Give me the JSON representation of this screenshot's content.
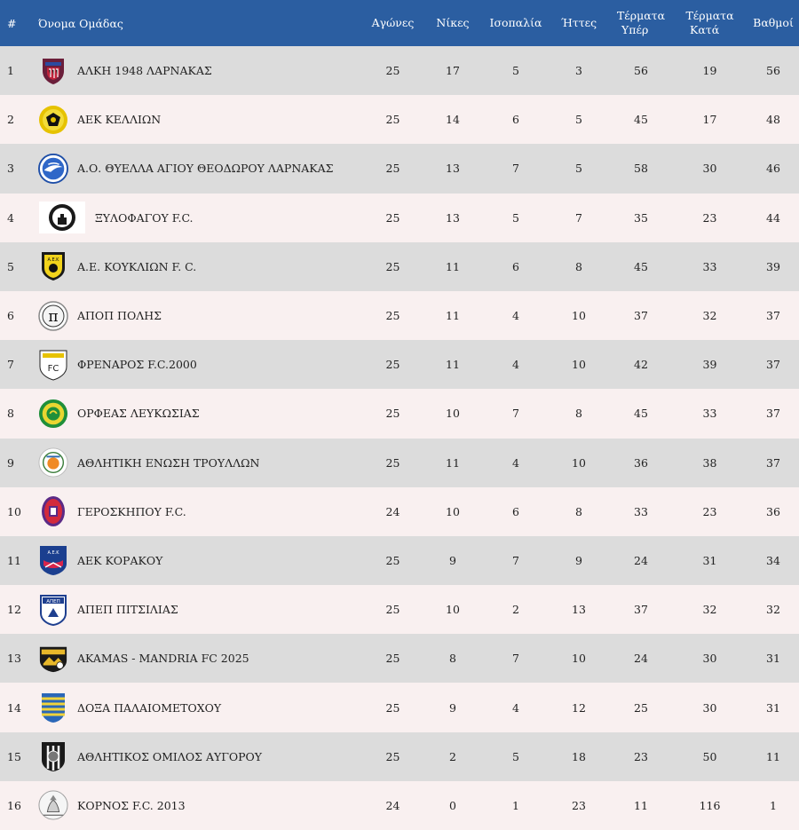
{
  "header": {
    "rank": "#",
    "team": "Όνομα Ομάδας",
    "played": "Αγώνες",
    "wins": "Νίκες",
    "draws": "Ισοπαλία",
    "losses": "Ήττες",
    "goals_for_line1": "Τέρματα",
    "goals_for_line2": "Υπέρ",
    "goals_against_line1": "Τέρματα",
    "goals_against_line2": "Κατά",
    "points": "Βαθμοί"
  },
  "colors": {
    "header_bg": "#2b5ea1",
    "row_odd": "#dcdcdc",
    "row_even": "#f9f0f0"
  },
  "rows": [
    {
      "rank": "1",
      "team": "ΑΛΚΗ 1948 ΛΑΡΝΑΚΑΣ",
      "logo": "alki-crest-icon",
      "played": "25",
      "wins": "17",
      "draws": "5",
      "losses": "3",
      "gf": "56",
      "ga": "19",
      "pts": "56"
    },
    {
      "rank": "2",
      "team": "ΑΕΚ ΚΕΛΛΙΩΝ",
      "logo": "aek-kellion-crest-icon",
      "played": "25",
      "wins": "14",
      "draws": "6",
      "losses": "5",
      "gf": "45",
      "ga": "17",
      "pts": "48"
    },
    {
      "rank": "3",
      "team": "Α.Ο. ΘΥΕΛΛΑ ΑΓΙΟΥ ΘΕΟΔΩΡΟΥ ΛΑΡΝΑΚΑΣ",
      "logo": "thyella-crest-icon",
      "played": "25",
      "wins": "13",
      "draws": "7",
      "losses": "5",
      "gf": "58",
      "ga": "30",
      "pts": "46"
    },
    {
      "rank": "4",
      "team": "ΞΥΛΟΦΑΓΟΥ F.C.",
      "logo": "xylofagou-crest-icon",
      "played": "25",
      "wins": "13",
      "draws": "5",
      "losses": "7",
      "gf": "35",
      "ga": "23",
      "pts": "44"
    },
    {
      "rank": "5",
      "team": "Α.Ε. ΚΟΥΚΛΙΩΝ F. C.",
      "logo": "ae-kouklion-crest-icon",
      "played": "25",
      "wins": "11",
      "draws": "6",
      "losses": "8",
      "gf": "45",
      "ga": "33",
      "pts": "39"
    },
    {
      "rank": "6",
      "team": "ΑΠΟΠ ΠΟΛΗΣ",
      "logo": "apop-crest-icon",
      "played": "25",
      "wins": "11",
      "draws": "4",
      "losses": "10",
      "gf": "37",
      "ga": "32",
      "pts": "37"
    },
    {
      "rank": "7",
      "team": "ΦΡΕΝΑΡΟΣ F.C.2000",
      "logo": "frenaros-crest-icon",
      "played": "25",
      "wins": "11",
      "draws": "4",
      "losses": "10",
      "gf": "42",
      "ga": "39",
      "pts": "37"
    },
    {
      "rank": "8",
      "team": "ΟΡΦΕΑΣ ΛΕΥΚΩΣΙΑΣ",
      "logo": "orfeas-crest-icon",
      "played": "25",
      "wins": "10",
      "draws": "7",
      "losses": "8",
      "gf": "45",
      "ga": "33",
      "pts": "37"
    },
    {
      "rank": "9",
      "team": "ΑΘΛΗΤΙΚΗ ΕΝΩΣΗ ΤΡΟΥΛΛΩΝ",
      "logo": "troullon-crest-icon",
      "played": "25",
      "wins": "11",
      "draws": "4",
      "losses": "10",
      "gf": "36",
      "ga": "38",
      "pts": "37"
    },
    {
      "rank": "10",
      "team": "ΓΕΡΟΣΚΗΠΟΥ F.C.",
      "logo": "geroskipou-crest-icon",
      "played": "24",
      "wins": "10",
      "draws": "6",
      "losses": "8",
      "gf": "33",
      "ga": "23",
      "pts": "36"
    },
    {
      "rank": "11",
      "team": "ΑΕΚ ΚΟΡΑΚΟΥ",
      "logo": "aek-korakou-crest-icon",
      "played": "25",
      "wins": "9",
      "draws": "7",
      "losses": "9",
      "gf": "24",
      "ga": "31",
      "pts": "34"
    },
    {
      "rank": "12",
      "team": "ΑΠΕΠ ΠΙΤΣΙΛΙΑΣ",
      "logo": "apep-crest-icon",
      "played": "25",
      "wins": "10",
      "draws": "2",
      "losses": "13",
      "gf": "37",
      "ga": "32",
      "pts": "32"
    },
    {
      "rank": "13",
      "team": "AKAMAS - MANDRIA FC 2025",
      "logo": "akamas-crest-icon",
      "played": "25",
      "wins": "8",
      "draws": "7",
      "losses": "10",
      "gf": "24",
      "ga": "30",
      "pts": "31"
    },
    {
      "rank": "14",
      "team": "ΔΟΞΑ ΠΑΛΑΙΟΜΕΤΟΧΟΥ",
      "logo": "doxa-crest-icon",
      "played": "25",
      "wins": "9",
      "draws": "4",
      "losses": "12",
      "gf": "25",
      "ga": "30",
      "pts": "31"
    },
    {
      "rank": "15",
      "team": "ΑΘΛΗΤΙΚΟΣ ΟΜΙΛΟΣ ΑΥΓΟΡΟΥ",
      "logo": "avgorou-crest-icon",
      "played": "25",
      "wins": "2",
      "draws": "5",
      "losses": "18",
      "gf": "23",
      "ga": "50",
      "pts": "11"
    },
    {
      "rank": "16",
      "team": "ΚΟΡΝΟΣ F.C. 2013",
      "logo": "kornos-crest-icon",
      "played": "24",
      "wins": "0",
      "draws": "1",
      "losses": "23",
      "gf": "11",
      "ga": "116",
      "pts": "1"
    }
  ]
}
